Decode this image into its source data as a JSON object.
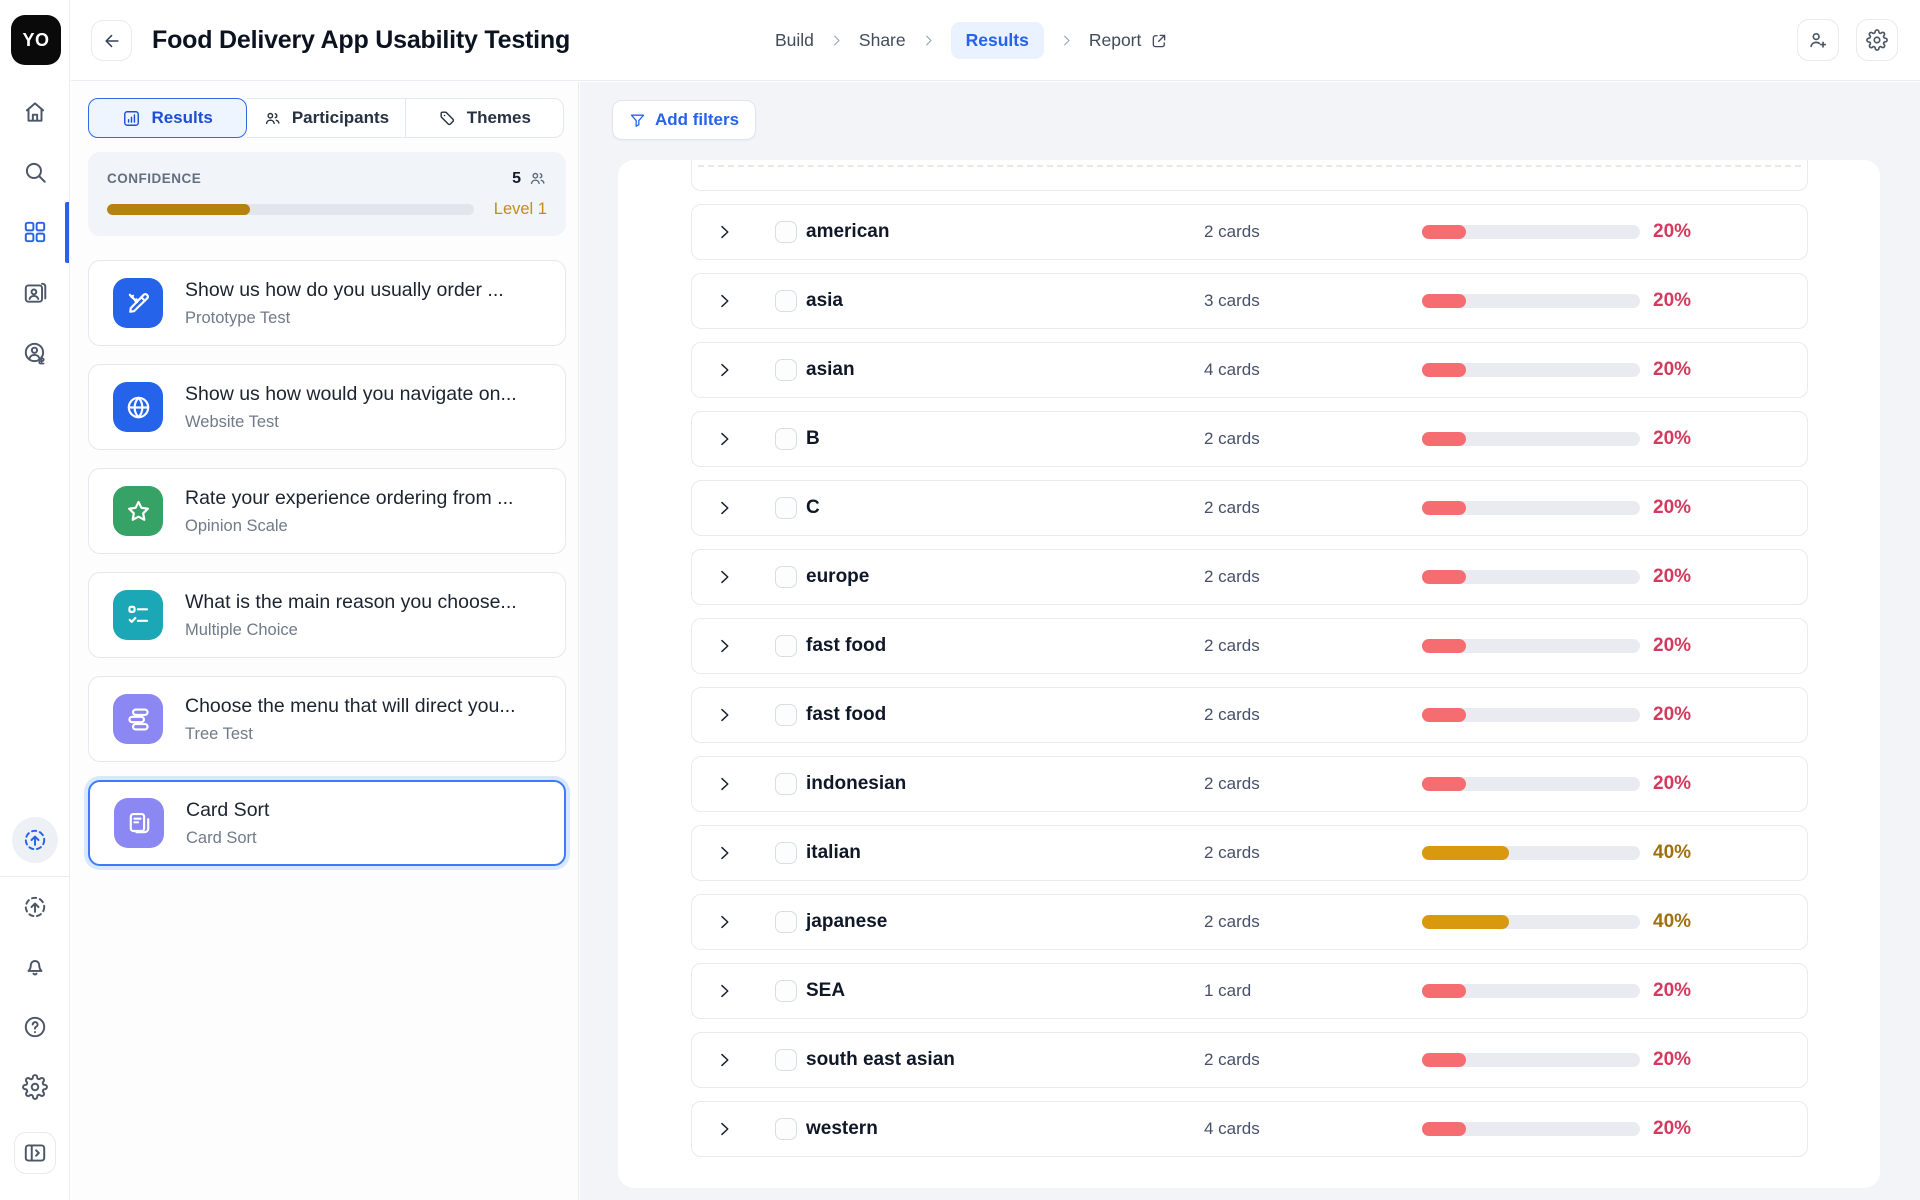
{
  "logo": "YO",
  "header": {
    "title": "Food Delivery App Usability Testing",
    "breadcrumb": {
      "items": [
        "Build",
        "Share"
      ],
      "active": "Results",
      "report": "Report"
    }
  },
  "rail_icons": [
    "home",
    "search",
    "grid",
    "contacts",
    "person-dollar",
    "sync",
    "upload",
    "bell",
    "help",
    "gear",
    "panel-toggle"
  ],
  "tabs": [
    {
      "label": "Results",
      "icon": "bar-chart",
      "active": true
    },
    {
      "label": "Participants",
      "icon": "people",
      "active": false
    },
    {
      "label": "Themes",
      "icon": "tag",
      "active": false
    }
  ],
  "confidence": {
    "label": "CONFIDENCE",
    "count": "5",
    "level": "Level 1",
    "percent": 39
  },
  "blocks": [
    {
      "title": "Show us how do you usually order ...",
      "subtitle": "Prototype Test",
      "icon": "prototype",
      "color": "#2563eb",
      "selected": false
    },
    {
      "title": "Show us how would you navigate on...",
      "subtitle": "Website Test",
      "icon": "globe",
      "color": "#2563eb",
      "selected": false
    },
    {
      "title": "Rate your experience ordering from ...",
      "subtitle": "Opinion Scale",
      "icon": "star",
      "color": "#36a266",
      "selected": false
    },
    {
      "title": "What is the main reason you choose...",
      "subtitle": "Multiple Choice",
      "icon": "checklist",
      "color": "#1ba7b5",
      "selected": false
    },
    {
      "title": "Choose the menu that will direct you...",
      "subtitle": "Tree Test",
      "icon": "tree",
      "color": "#8b87f3",
      "selected": false
    },
    {
      "title": "Card Sort",
      "subtitle": "Card Sort",
      "icon": "cards",
      "color": "#8b87f3",
      "selected": true
    }
  ],
  "filters": {
    "label": "Add filters"
  },
  "table": {
    "rows": [
      {
        "name": "american",
        "cards": "2 cards",
        "percent": 20,
        "color": "red"
      },
      {
        "name": "asia",
        "cards": "3 cards",
        "percent": 20,
        "color": "red"
      },
      {
        "name": "asian",
        "cards": "4 cards",
        "percent": 20,
        "color": "red"
      },
      {
        "name": "B",
        "cards": "2 cards",
        "percent": 20,
        "color": "red"
      },
      {
        "name": "C",
        "cards": "2 cards",
        "percent": 20,
        "color": "red"
      },
      {
        "name": "europe",
        "cards": "2 cards",
        "percent": 20,
        "color": "red"
      },
      {
        "name": "fast food",
        "cards": "2 cards",
        "percent": 20,
        "color": "red"
      },
      {
        "name": "fast food",
        "cards": "2 cards",
        "percent": 20,
        "color": "red"
      },
      {
        "name": "indonesian",
        "cards": "2 cards",
        "percent": 20,
        "color": "red"
      },
      {
        "name": "italian",
        "cards": "2 cards",
        "percent": 40,
        "color": "amber"
      },
      {
        "name": "japanese",
        "cards": "2 cards",
        "percent": 40,
        "color": "amber"
      },
      {
        "name": "SEA",
        "cards": "1 card",
        "percent": 20,
        "color": "red"
      },
      {
        "name": "south east asian",
        "cards": "2 cards",
        "percent": 20,
        "color": "red"
      },
      {
        "name": "western",
        "cards": "4 cards",
        "percent": 20,
        "color": "red"
      }
    ]
  },
  "colors": {
    "accent": "#2563eb",
    "red_fill": "#f66d71",
    "red_text": "#d43a5e",
    "amber_fill": "#d8990f",
    "amber_text": "#a0700d",
    "confidence_fill": "#b5820f"
  }
}
